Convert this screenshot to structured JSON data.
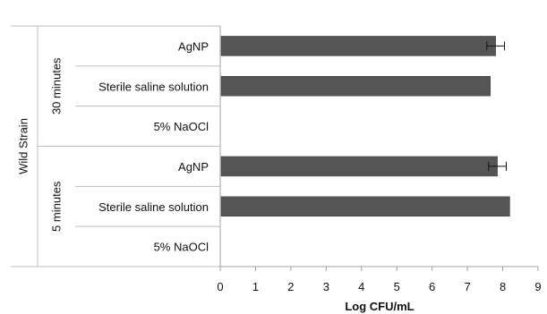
{
  "chart_data": {
    "type": "bar",
    "orientation": "horizontal",
    "title": "",
    "xlabel": "Log CFU/mL",
    "xlim": [
      0,
      9
    ],
    "x_ticks": [
      "0",
      "1",
      "2",
      "3",
      "4",
      "5",
      "6",
      "7",
      "8",
      "9"
    ],
    "outer_label": "Wild Strain",
    "groups": [
      {
        "label": "30 minutes",
        "rows": [
          {
            "category": "AgNP",
            "value": 7.8,
            "error": 0.25
          },
          {
            "category": "Sterile saline solution",
            "value": 7.65,
            "error": 0
          },
          {
            "category": "5% NaOCl",
            "value": 0,
            "error": 0
          }
        ]
      },
      {
        "label": "5 minutes",
        "rows": [
          {
            "category": "AgNP",
            "value": 7.85,
            "error": 0.25
          },
          {
            "category": "Sterile saline solution",
            "value": 8.2,
            "error": 0
          },
          {
            "category": "5% NaOCl",
            "value": 0,
            "error": 0
          }
        ]
      }
    ],
    "bar_color": "#555555",
    "grid": false,
    "legend": "none"
  }
}
